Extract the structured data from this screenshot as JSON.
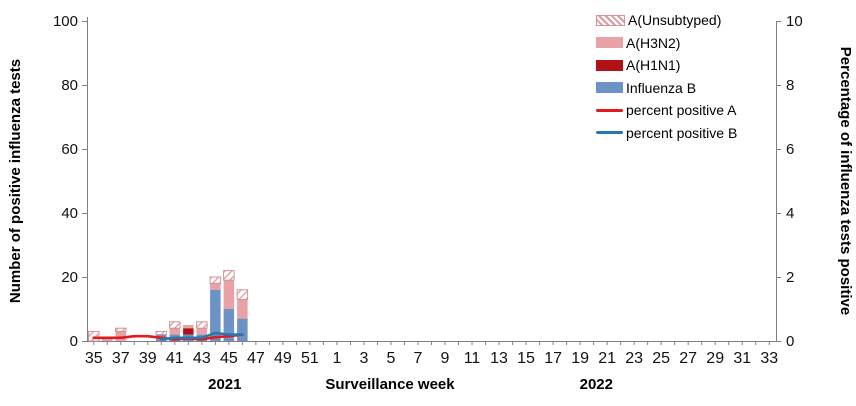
{
  "page": {
    "background": "#ffffff"
  },
  "legend": {
    "items": [
      {
        "label": "A(Unsubtyped)",
        "swatch": "hatch",
        "color": "#d9959b"
      },
      {
        "label": "A(H3N2)",
        "swatch": "solid",
        "color": "#e8a1a5"
      },
      {
        "label": "A(H1N1)",
        "swatch": "solid",
        "color": "#b01218"
      },
      {
        "label": "Influenza B",
        "swatch": "solid",
        "color": "#6d92c5"
      },
      {
        "label": "percent positive A",
        "swatch": "line",
        "color": "#e11b1b"
      },
      {
        "label": "percent positive B",
        "swatch": "line",
        "color": "#2577b5"
      }
    ]
  },
  "chart_data": {
    "type": "bar",
    "title": "",
    "subtitle": "",
    "grid": false,
    "legend_position": "top-right",
    "x_axis": {
      "label": "Surveillance week",
      "years": [
        {
          "label": "2021",
          "weeks": "35-52"
        },
        {
          "label": "2022",
          "weeks": "1-33"
        }
      ]
    },
    "left_axis": {
      "label": "Number of positive influenza tests",
      "min": 0,
      "max": 100,
      "ticks": [
        0,
        20,
        40,
        60,
        80,
        100
      ]
    },
    "right_axis": {
      "label": "Percentage of influenza tests positive",
      "min": 0,
      "max": 10,
      "ticks": [
        0,
        2,
        4,
        6,
        8,
        10
      ]
    },
    "categories": [
      "35",
      "36",
      "37",
      "38",
      "39",
      "40",
      "41",
      "42",
      "43",
      "44",
      "45",
      "46",
      "47",
      "48",
      "49",
      "50",
      "51",
      "52",
      "1",
      "2",
      "3",
      "4",
      "5",
      "6",
      "7",
      "8",
      "9",
      "10",
      "11",
      "12",
      "13",
      "14",
      "15",
      "16",
      "17",
      "18",
      "19",
      "20",
      "21",
      "22",
      "23",
      "24",
      "25",
      "26",
      "27",
      "28",
      "29",
      "30",
      "31",
      "32",
      "33"
    ],
    "x_tick_labels": [
      "35",
      "37",
      "39",
      "41",
      "43",
      "45",
      "47",
      "49",
      "51",
      "1",
      "3",
      "5",
      "7",
      "9",
      "11",
      "13",
      "15",
      "17",
      "19",
      "21",
      "23",
      "25",
      "27",
      "29",
      "31",
      "33"
    ],
    "series": [
      {
        "name": "Influenza B",
        "type": "bar",
        "axis": "left",
        "color": "#6d92c5",
        "values": [
          0,
          0,
          0,
          0,
          0,
          2,
          2,
          2,
          2,
          16,
          10,
          7,
          0,
          0,
          0,
          0,
          0,
          0,
          0,
          0,
          0,
          0,
          0,
          0,
          0,
          0,
          0,
          0,
          0,
          0,
          0,
          0,
          0,
          0,
          0,
          0,
          0,
          0,
          0,
          0,
          0,
          0,
          0,
          0,
          0,
          0,
          0,
          0,
          0,
          0,
          0
        ]
      },
      {
        "name": "A(H1N1)",
        "type": "bar",
        "axis": "left",
        "color": "#b01218",
        "values": [
          0,
          0,
          0,
          0,
          0,
          0,
          0,
          2,
          0,
          0,
          0,
          0,
          0,
          0,
          0,
          0,
          0,
          0,
          0,
          0,
          0,
          0,
          0,
          0,
          0,
          0,
          0,
          0,
          0,
          0,
          0,
          0,
          0,
          0,
          0,
          0,
          0,
          0,
          0,
          0,
          0,
          0,
          0,
          0,
          0,
          0,
          0,
          0,
          0,
          0,
          0
        ]
      },
      {
        "name": "A(H3N2)",
        "type": "bar",
        "axis": "left",
        "color": "#e8a1a5",
        "values": [
          0,
          1,
          3,
          0,
          0,
          0,
          2,
          1,
          2,
          2,
          9,
          6,
          0,
          0,
          0,
          0,
          0,
          0,
          0,
          0,
          0,
          0,
          0,
          0,
          0,
          0,
          0,
          0,
          0,
          0,
          0,
          0,
          0,
          0,
          0,
          0,
          0,
          0,
          0,
          0,
          0,
          0,
          0,
          0,
          0,
          0,
          0,
          0,
          0,
          0,
          0
        ]
      },
      {
        "name": "A(Unsubtyped)",
        "type": "bar",
        "axis": "left",
        "color": "#f7e6e7",
        "pattern": "hatch",
        "hatch_color": "#d9959b",
        "border_color": "#d29399",
        "values": [
          3,
          0,
          1,
          0,
          0,
          1,
          2,
          0,
          2,
          2,
          3,
          3,
          0,
          0,
          0,
          0,
          0,
          0,
          0,
          0,
          0,
          0,
          0,
          0,
          0,
          0,
          0,
          0,
          0,
          0,
          0,
          0,
          0,
          0,
          0,
          0,
          0,
          0,
          0,
          0,
          0,
          0,
          0,
          0,
          0,
          0,
          0,
          0,
          0,
          0,
          0
        ]
      },
      {
        "name": "percent positive A",
        "type": "line",
        "axis": "right",
        "color": "#e11b1b",
        "values": [
          0.1,
          0.1,
          0.1,
          0.15,
          0.15,
          0.1,
          0.05,
          0.08,
          0.05,
          0.12,
          0.15,
          0.2,
          null,
          null,
          null,
          null,
          null,
          null,
          null,
          null,
          null,
          null,
          null,
          null,
          null,
          null,
          null,
          null,
          null,
          null,
          null,
          null,
          null,
          null,
          null,
          null,
          null,
          null,
          null,
          null,
          null,
          null,
          null,
          null,
          null,
          null,
          null,
          null,
          null,
          null,
          null
        ]
      },
      {
        "name": "percent positive B",
        "type": "line",
        "axis": "right",
        "color": "#2577b5",
        "values": [
          null,
          null,
          null,
          null,
          null,
          0.05,
          0.1,
          0.1,
          0.1,
          0.25,
          0.2,
          0.2,
          null,
          null,
          null,
          null,
          null,
          null,
          null,
          null,
          null,
          null,
          null,
          null,
          null,
          null,
          null,
          null,
          null,
          null,
          null,
          null,
          null,
          null,
          null,
          null,
          null,
          null,
          null,
          null,
          null,
          null,
          null,
          null,
          null,
          null,
          null,
          null,
          null,
          null,
          null
        ]
      }
    ]
  }
}
